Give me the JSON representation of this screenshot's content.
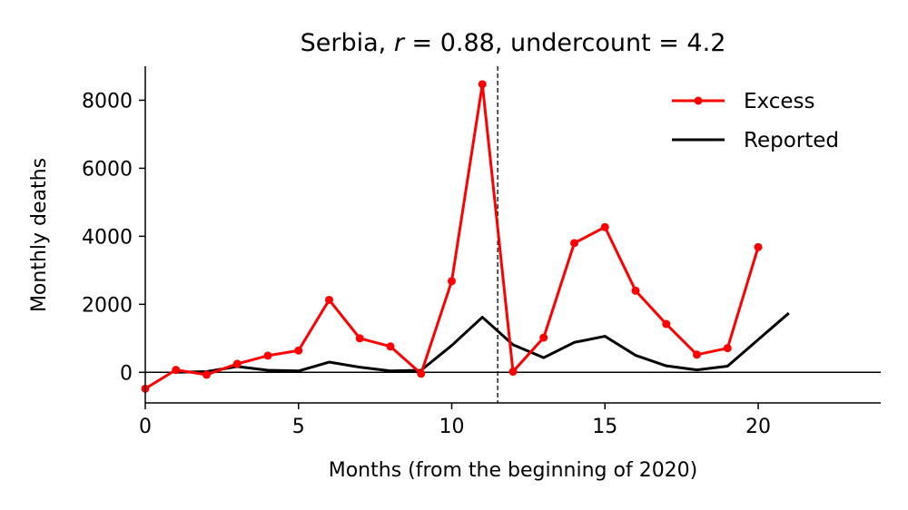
{
  "chart_data": {
    "type": "line",
    "title": {
      "prefix": "Serbia, ",
      "r_symbol": "r",
      "r_value": " = 0.88, undercount = 4.2"
    },
    "xlabel": "Months (from the beginning of 2020)",
    "ylabel": "Monthly deaths",
    "xlim": [
      0,
      24
    ],
    "ylim": [
      -900,
      9000
    ],
    "xticks": [
      0,
      5,
      10,
      15,
      20
    ],
    "yticks": [
      0,
      2000,
      4000,
      6000,
      8000
    ],
    "vline_x": 11.5,
    "hline_y": 0,
    "legend_position": "top-right",
    "series": [
      {
        "name": "Excess",
        "color": "#ff0000",
        "marker": "circle",
        "x": [
          0,
          1,
          2,
          3,
          4,
          5,
          6,
          7,
          8,
          9,
          10,
          11,
          12,
          13,
          14,
          15,
          16,
          17,
          18,
          19,
          20
        ],
        "values": [
          -480,
          70,
          -70,
          250,
          490,
          640,
          2130,
          1000,
          760,
          -40,
          2680,
          8470,
          20,
          1020,
          3800,
          4270,
          2400,
          1420,
          520,
          710,
          3680
        ]
      },
      {
        "name": "Reported",
        "color": "#000000",
        "marker": "none",
        "x": [
          1,
          2,
          3,
          4,
          5,
          6,
          7,
          8,
          9,
          10,
          11,
          12,
          13,
          14,
          15,
          16,
          17,
          18,
          19,
          20,
          21
        ],
        "values": [
          0,
          20,
          170,
          60,
          40,
          300,
          150,
          40,
          60,
          790,
          1620,
          810,
          430,
          880,
          1060,
          500,
          190,
          70,
          180,
          960,
          1740
        ]
      }
    ]
  }
}
